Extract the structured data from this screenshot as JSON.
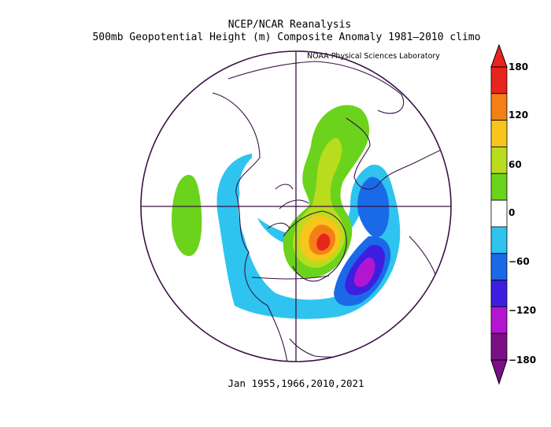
{
  "header": {
    "title": "NCEP/NCAR Reanalysis",
    "subtitle": "500mb Geopotential Height (m) Composite Anomaly 1981–2010 climo",
    "credit": "NOAA Physical Sciences Laboratory"
  },
  "footer": {
    "dates": "Jan 1955,1966,2010,2021"
  },
  "colorbar": {
    "labels": [
      "180",
      "120",
      "60",
      "0",
      "−60",
      "−120",
      "−180"
    ],
    "levels": [
      {
        "range": "150 to 180",
        "color": "#e8251c"
      },
      {
        "range": "120 to 150",
        "color": "#f57f17"
      },
      {
        "range": "90 to 120",
        "color": "#f8c51a"
      },
      {
        "range": "60 to 90",
        "color": "#b9dc1e"
      },
      {
        "range": "30 to 60",
        "color": "#6bd31b"
      },
      {
        "range": "-30 to 30",
        "color": "#ffffff"
      },
      {
        "range": "-60 to -30",
        "color": "#2ec4ef"
      },
      {
        "range": "-90 to -60",
        "color": "#1a6ae8"
      },
      {
        "range": "-120 to -90",
        "color": "#3c1fe0"
      },
      {
        "range": "-150 to -120",
        "color": "#b416cf"
      },
      {
        "range": "-180 to -150",
        "color": "#7b0f86"
      }
    ]
  },
  "map": {
    "projection": "polar stereographic (north)",
    "outline_color": "#3a1145"
  }
}
